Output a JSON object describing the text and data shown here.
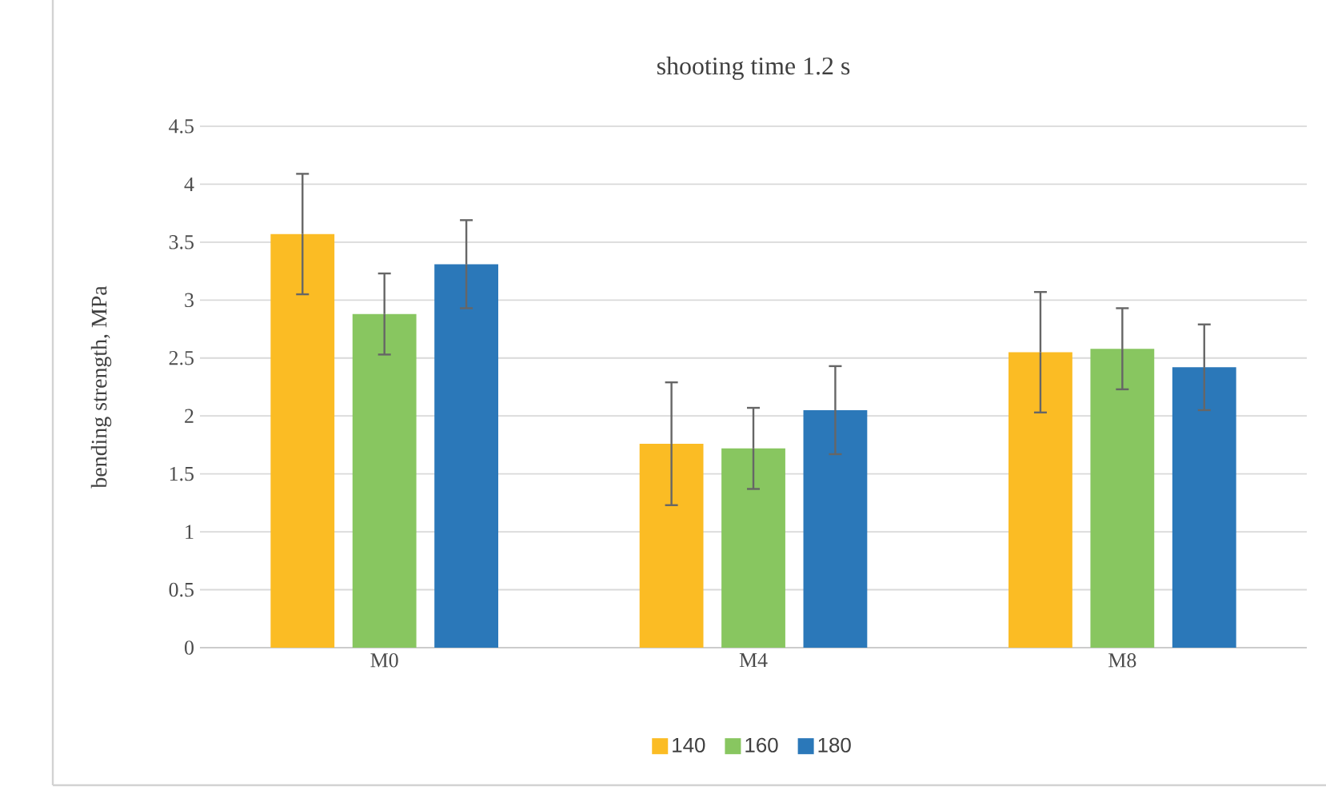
{
  "chart_data": {
    "type": "bar",
    "title": "shooting time 1.2 s",
    "ylabel": "bending strength, MPa",
    "categories": [
      "M0",
      "M4",
      "M8"
    ],
    "series": [
      {
        "name": "140",
        "color": "#fbbc24",
        "values": [
          3.57,
          1.76,
          2.55
        ],
        "errors": [
          0.52,
          0.53,
          0.52
        ]
      },
      {
        "name": "160",
        "color": "#88c660",
        "values": [
          2.88,
          1.72,
          2.58
        ],
        "errors": [
          0.35,
          0.35,
          0.35
        ]
      },
      {
        "name": "180",
        "color": "#2b78b9",
        "values": [
          3.31,
          2.05,
          2.42
        ],
        "errors": [
          0.38,
          0.38,
          0.37
        ]
      }
    ],
    "ylim": [
      0,
      4.5
    ],
    "yticks": [
      0,
      0.5,
      1,
      1.5,
      2,
      2.5,
      3,
      3.5,
      4,
      4.5
    ],
    "grid": "y",
    "legend": "bottom"
  }
}
